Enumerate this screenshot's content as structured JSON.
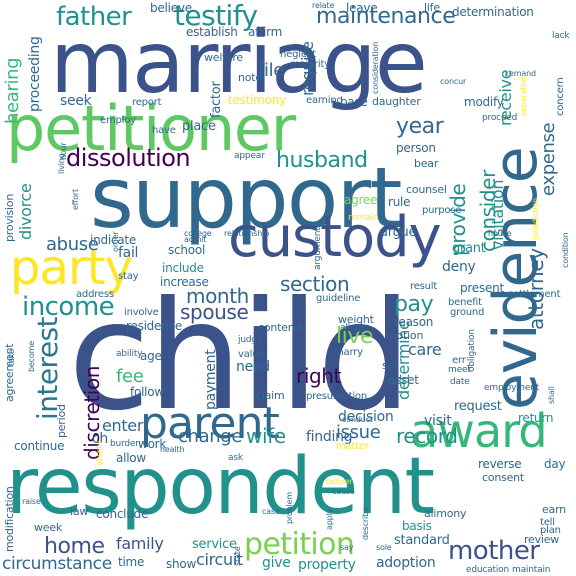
{
  "words": {
    "child": "child",
    "support": "support",
    "marriage": "marriage",
    "respondent": "respondent",
    "petitioner": "petitioner",
    "custody": "custody",
    "evidence": "evidence",
    "party": "party",
    "award": "award",
    "parent": "parent",
    "father": "father",
    "testify": "testify",
    "maintenance": "maintenance",
    "dissolution": "dissolution",
    "husband": "husband",
    "income": "income",
    "interest": "interest",
    "petition": "petition",
    "mother": "mother",
    "home": "home",
    "wife": "wife",
    "record": "record",
    "right": "right",
    "month": "month",
    "spouse": "spouse",
    "section": "section",
    "pay": "pay",
    "live": "live",
    "change": "change",
    "issue": "issue",
    "finding": "finding",
    "year": "year",
    "file": "file",
    "consider": "consider",
    "provide": "provide",
    "attorney": "attorney",
    "expense": "expense",
    "abuse": "abuse",
    "discretion": "discretion",
    "divorce": "divorce",
    "hearing": "hearing",
    "proceeding": "proceeding",
    "require": "require",
    "circumstance": "circumstance",
    "family": "family",
    "fee": "fee",
    "care": "care",
    "determine": "determine",
    "visitation": "visitation",
    "receive": "receive",
    "circuit": "circuit",
    "property": "property",
    "give": "give",
    "service": "service",
    "standard": "standard",
    "basis": "basis",
    "review": "review",
    "deny": "deny",
    "grant": "grant",
    "need": "need",
    "payment": "payment",
    "enter": "enter",
    "decision": "decision",
    "visit": "visit",
    "request": "request",
    "return": "return",
    "argue": "argue",
    "agree": "agree",
    "rule": "rule",
    "counsel": "counsel",
    "include": "include",
    "increase": "increase",
    "school": "school",
    "indicate": "indicate",
    "fail": "fail",
    "seek": "seek",
    "establish": "establish",
    "affirm": "affirm",
    "believe": "believe",
    "leave": "leave",
    "life": "life",
    "determination": "determination",
    "factor": "factor",
    "modify": "modify",
    "testimony": "testimony",
    "place": "place",
    "person": "person",
    "bear": "bear",
    "reason": "reason",
    "motion": "motion",
    "asset": "asset",
    "set": "set",
    "present": "present",
    "residence": "residence",
    "contend": "contend",
    "claim": "claim",
    "follow": "follow",
    "allow": "allow",
    "age": "age",
    "reverse": "reverse",
    "day": "day",
    "consent": "consent",
    "conclude": "conclude",
    "work": "work",
    "law": "law",
    "week": "week",
    "continue": "continue",
    "provision": "provision",
    "agreement": "agreement",
    "period": "period",
    "modification": "modification",
    "adoption": "adoption",
    "show": "show",
    "time": "time",
    "ch": "ch",
    "base": "base",
    "welfare": "welfare",
    "note": "note",
    "majority": "majority",
    "neglect": "neglect",
    "daughter": "daughter",
    "earning": "earning",
    "report": "report",
    "concern": "concern",
    "lack": "lack",
    "remand": "remand",
    "relate": "relate",
    "employ": "employ",
    "purpose": "purpose",
    "address": "address",
    "stay": "stay",
    "involve": "involve",
    "weight": "weight",
    "marry": "marry",
    "value": "value",
    "result": "result",
    "guideline": "guideline",
    "relationship": "relationship",
    "settlement": "settlement",
    "ground": "ground",
    "benefit": "benefit",
    "err": "err",
    "meet": "meet",
    "date": "date",
    "employment": "employment",
    "obligation": "obligation",
    "presumption": "presumption",
    "conduct": "conduct",
    "alimony": "alimony",
    "earn": "earn",
    "tell": "tell",
    "plan": "plan",
    "education": "education",
    "maintain": "maintain",
    "health": "health",
    "burden": "burden",
    "ask": "ask",
    "judge": "judge",
    "matter": "matter",
    "allege": "allege",
    "problem": "problem",
    "apply": "apply",
    "say": "say",
    "case": "case",
    "cause": "cause",
    "sole": "sole",
    "remain": "remain",
    "appear": "appear",
    "living": "living",
    "effort": "effort",
    "have": "have",
    "college": "college",
    "admit": "admit",
    "ability": "ability",
    "order": "order",
    "proceed": "proceed",
    "separation": "separation",
    "consideration": "consideration",
    "hour": "hour",
    "house": "house",
    "deliver": "deliver",
    "argument": "argument",
    "jurisdiction": "jurisdiction",
    "concur": "concur",
    "raise": "raise",
    "take": "take",
    "become": "become",
    "shall": "shall",
    "obtain": "obtain",
    "condition": "condition",
    "describe": "describe",
    "state": "state"
  },
  "palette": {
    "dark_purple": "#440154",
    "blue": "#3b528b",
    "slate": "#31688e",
    "teal": "#21918c",
    "green": "#35b779",
    "lime": "#90d743",
    "yellow": "#fde725"
  }
}
